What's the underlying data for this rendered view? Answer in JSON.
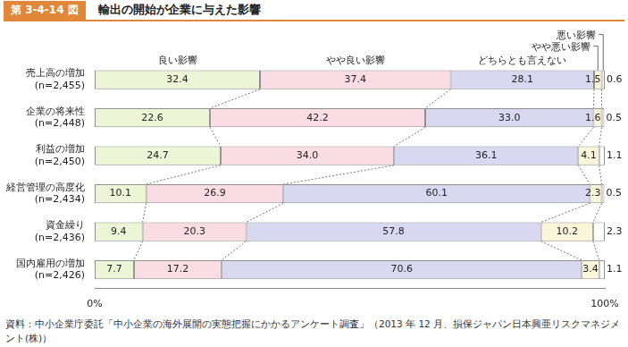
{
  "chart_data": {
    "type": "bar",
    "figure_label": "第 3-4-14 図",
    "title": "輸出の開始が企業に与えた影響",
    "source": "資料：中小企業庁委託「中小企業の海外展開の実態把握にかかるアンケート調査」（2013 年 12 月、損保ジャパン日本興亜リスクマネジメント(株)）",
    "orientation": "horizontal",
    "stacked": true,
    "data_labels": true,
    "grid": false,
    "legend": "top",
    "categories": [
      "売上高の増加\n(n=2,455)",
      "企業の将来性\n(n=2,448)",
      "利益の増加\n(n=2,450)",
      "経営管理の高度化\n(n=2,434)",
      "資金繰り\n(n=2,436)",
      "国内雇用の増加\n(n=2,426)"
    ],
    "xlim": [
      0,
      100
    ],
    "xticks": [
      {
        "value": 0,
        "label": "0%"
      },
      {
        "value": 100,
        "label": "100%"
      }
    ],
    "series": [
      {
        "name": "良い影響",
        "color": "#eef5d6",
        "values": [
          32.4,
          22.6,
          24.7,
          10.1,
          9.4,
          7.7
        ],
        "value_labels": [
          "32.4",
          "22.6",
          "24.7",
          "10.1",
          "9.4",
          "7.7"
        ]
      },
      {
        "name": "やや良い影響",
        "color": "#fadce4",
        "values": [
          37.4,
          42.2,
          34.0,
          26.9,
          20.3,
          17.2
        ],
        "value_labels": [
          "37.4",
          "42.2",
          "34.0",
          "26.9",
          "20.3",
          "17.2"
        ]
      },
      {
        "name": "どちらとも言えない",
        "color": "#d8d8f0",
        "values": [
          28.1,
          33.0,
          36.1,
          60.1,
          57.8,
          70.6
        ],
        "value_labels": [
          "28.1",
          "33.0",
          "36.1",
          "60.1",
          "57.8",
          "70.6"
        ]
      },
      {
        "name": "やや悪い影響",
        "color": "#fbf6da",
        "values": [
          1.5,
          1.6,
          4.1,
          2.3,
          10.2,
          3.4
        ],
        "value_labels": [
          "1.5",
          "1.6",
          "4.1",
          "2.3",
          "10.2",
          "3.4"
        ]
      },
      {
        "name": "悪い影響",
        "color": "#ffffff",
        "values": [
          0.6,
          0.5,
          1.1,
          0.5,
          2.3,
          1.1
        ],
        "value_labels": [
          "0.6",
          "0.5",
          "1.1",
          "0.5",
          "2.3",
          "1.1"
        ]
      }
    ]
  }
}
